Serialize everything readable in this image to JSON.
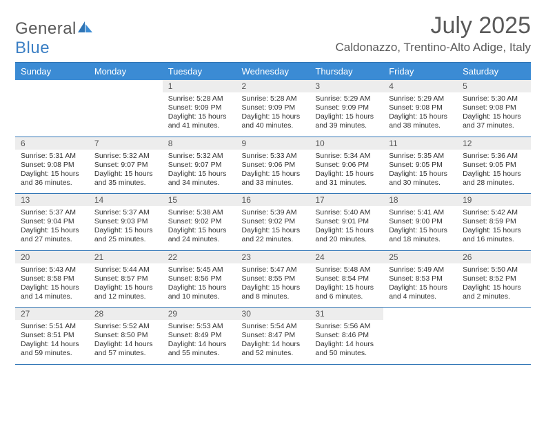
{
  "brand": {
    "part1": "General",
    "part2": "Blue"
  },
  "title": "July 2025",
  "location": "Caldonazzo, Trentino-Alto Adige, Italy",
  "colors": {
    "header_bg": "#3b8bd4",
    "rule": "#2e74b5",
    "daynum_bg": "#ededed",
    "text": "#333333",
    "muted": "#595959"
  },
  "days_of_week": [
    "Sunday",
    "Monday",
    "Tuesday",
    "Wednesday",
    "Thursday",
    "Friday",
    "Saturday"
  ],
  "weeks": [
    [
      {
        "n": "",
        "sr": "",
        "ss": "",
        "dl": ""
      },
      {
        "n": "",
        "sr": "",
        "ss": "",
        "dl": ""
      },
      {
        "n": "1",
        "sr": "Sunrise: 5:28 AM",
        "ss": "Sunset: 9:09 PM",
        "dl": "Daylight: 15 hours and 41 minutes."
      },
      {
        "n": "2",
        "sr": "Sunrise: 5:28 AM",
        "ss": "Sunset: 9:09 PM",
        "dl": "Daylight: 15 hours and 40 minutes."
      },
      {
        "n": "3",
        "sr": "Sunrise: 5:29 AM",
        "ss": "Sunset: 9:09 PM",
        "dl": "Daylight: 15 hours and 39 minutes."
      },
      {
        "n": "4",
        "sr": "Sunrise: 5:29 AM",
        "ss": "Sunset: 9:08 PM",
        "dl": "Daylight: 15 hours and 38 minutes."
      },
      {
        "n": "5",
        "sr": "Sunrise: 5:30 AM",
        "ss": "Sunset: 9:08 PM",
        "dl": "Daylight: 15 hours and 37 minutes."
      }
    ],
    [
      {
        "n": "6",
        "sr": "Sunrise: 5:31 AM",
        "ss": "Sunset: 9:08 PM",
        "dl": "Daylight: 15 hours and 36 minutes."
      },
      {
        "n": "7",
        "sr": "Sunrise: 5:32 AM",
        "ss": "Sunset: 9:07 PM",
        "dl": "Daylight: 15 hours and 35 minutes."
      },
      {
        "n": "8",
        "sr": "Sunrise: 5:32 AM",
        "ss": "Sunset: 9:07 PM",
        "dl": "Daylight: 15 hours and 34 minutes."
      },
      {
        "n": "9",
        "sr": "Sunrise: 5:33 AM",
        "ss": "Sunset: 9:06 PM",
        "dl": "Daylight: 15 hours and 33 minutes."
      },
      {
        "n": "10",
        "sr": "Sunrise: 5:34 AM",
        "ss": "Sunset: 9:06 PM",
        "dl": "Daylight: 15 hours and 31 minutes."
      },
      {
        "n": "11",
        "sr": "Sunrise: 5:35 AM",
        "ss": "Sunset: 9:05 PM",
        "dl": "Daylight: 15 hours and 30 minutes."
      },
      {
        "n": "12",
        "sr": "Sunrise: 5:36 AM",
        "ss": "Sunset: 9:05 PM",
        "dl": "Daylight: 15 hours and 28 minutes."
      }
    ],
    [
      {
        "n": "13",
        "sr": "Sunrise: 5:37 AM",
        "ss": "Sunset: 9:04 PM",
        "dl": "Daylight: 15 hours and 27 minutes."
      },
      {
        "n": "14",
        "sr": "Sunrise: 5:37 AM",
        "ss": "Sunset: 9:03 PM",
        "dl": "Daylight: 15 hours and 25 minutes."
      },
      {
        "n": "15",
        "sr": "Sunrise: 5:38 AM",
        "ss": "Sunset: 9:02 PM",
        "dl": "Daylight: 15 hours and 24 minutes."
      },
      {
        "n": "16",
        "sr": "Sunrise: 5:39 AM",
        "ss": "Sunset: 9:02 PM",
        "dl": "Daylight: 15 hours and 22 minutes."
      },
      {
        "n": "17",
        "sr": "Sunrise: 5:40 AM",
        "ss": "Sunset: 9:01 PM",
        "dl": "Daylight: 15 hours and 20 minutes."
      },
      {
        "n": "18",
        "sr": "Sunrise: 5:41 AM",
        "ss": "Sunset: 9:00 PM",
        "dl": "Daylight: 15 hours and 18 minutes."
      },
      {
        "n": "19",
        "sr": "Sunrise: 5:42 AM",
        "ss": "Sunset: 8:59 PM",
        "dl": "Daylight: 15 hours and 16 minutes."
      }
    ],
    [
      {
        "n": "20",
        "sr": "Sunrise: 5:43 AM",
        "ss": "Sunset: 8:58 PM",
        "dl": "Daylight: 15 hours and 14 minutes."
      },
      {
        "n": "21",
        "sr": "Sunrise: 5:44 AM",
        "ss": "Sunset: 8:57 PM",
        "dl": "Daylight: 15 hours and 12 minutes."
      },
      {
        "n": "22",
        "sr": "Sunrise: 5:45 AM",
        "ss": "Sunset: 8:56 PM",
        "dl": "Daylight: 15 hours and 10 minutes."
      },
      {
        "n": "23",
        "sr": "Sunrise: 5:47 AM",
        "ss": "Sunset: 8:55 PM",
        "dl": "Daylight: 15 hours and 8 minutes."
      },
      {
        "n": "24",
        "sr": "Sunrise: 5:48 AM",
        "ss": "Sunset: 8:54 PM",
        "dl": "Daylight: 15 hours and 6 minutes."
      },
      {
        "n": "25",
        "sr": "Sunrise: 5:49 AM",
        "ss": "Sunset: 8:53 PM",
        "dl": "Daylight: 15 hours and 4 minutes."
      },
      {
        "n": "26",
        "sr": "Sunrise: 5:50 AM",
        "ss": "Sunset: 8:52 PM",
        "dl": "Daylight: 15 hours and 2 minutes."
      }
    ],
    [
      {
        "n": "27",
        "sr": "Sunrise: 5:51 AM",
        "ss": "Sunset: 8:51 PM",
        "dl": "Daylight: 14 hours and 59 minutes."
      },
      {
        "n": "28",
        "sr": "Sunrise: 5:52 AM",
        "ss": "Sunset: 8:50 PM",
        "dl": "Daylight: 14 hours and 57 minutes."
      },
      {
        "n": "29",
        "sr": "Sunrise: 5:53 AM",
        "ss": "Sunset: 8:49 PM",
        "dl": "Daylight: 14 hours and 55 minutes."
      },
      {
        "n": "30",
        "sr": "Sunrise: 5:54 AM",
        "ss": "Sunset: 8:47 PM",
        "dl": "Daylight: 14 hours and 52 minutes."
      },
      {
        "n": "31",
        "sr": "Sunrise: 5:56 AM",
        "ss": "Sunset: 8:46 PM",
        "dl": "Daylight: 14 hours and 50 minutes."
      },
      {
        "n": "",
        "sr": "",
        "ss": "",
        "dl": ""
      },
      {
        "n": "",
        "sr": "",
        "ss": "",
        "dl": ""
      }
    ]
  ]
}
